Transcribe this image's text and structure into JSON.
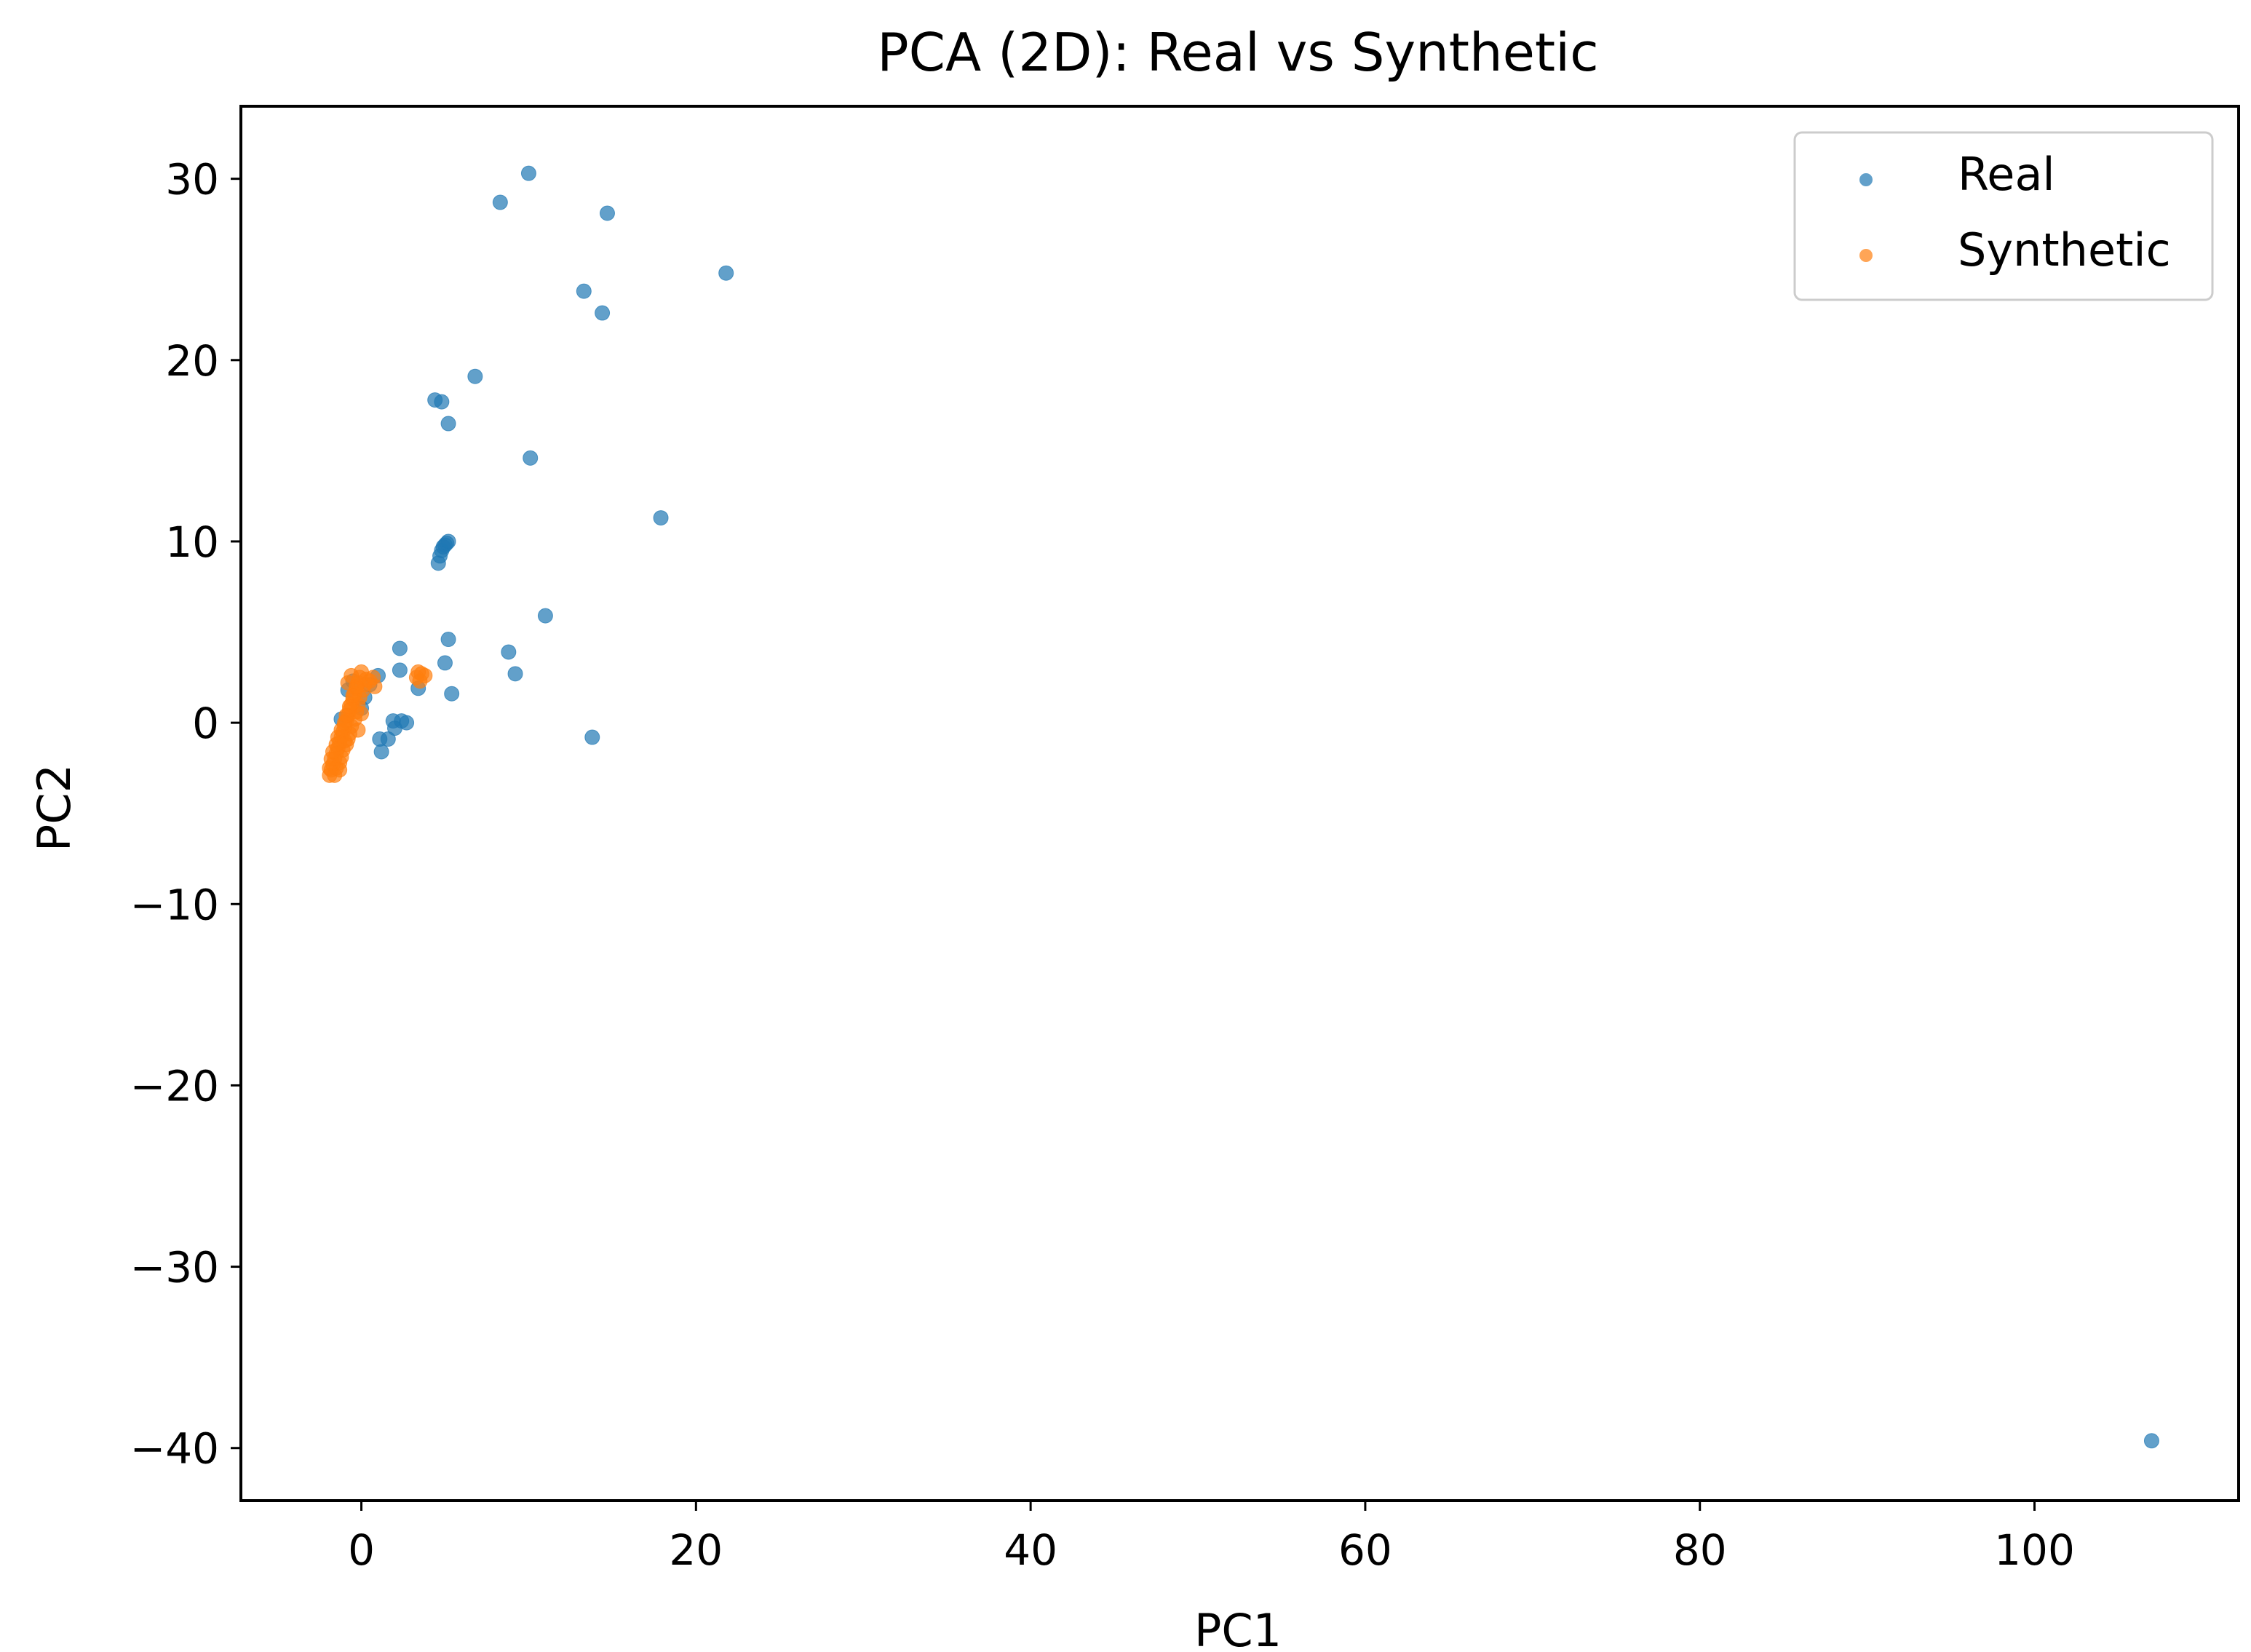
{
  "chart_data": {
    "type": "scatter",
    "title": "PCA (2D): Real vs Synthetic",
    "xlabel": "PC1",
    "ylabel": "PC2",
    "xlim": [
      -7.2,
      112.2
    ],
    "ylim": [
      -42.9,
      34.0
    ],
    "x_ticks": [
      0,
      20,
      40,
      60,
      80,
      100
    ],
    "y_ticks": [
      -40,
      -30,
      -20,
      -10,
      0,
      10,
      20,
      30
    ],
    "x_tick_labels": [
      "0",
      "20",
      "40",
      "60",
      "80",
      "100"
    ],
    "y_tick_labels": [
      "−40",
      "−30",
      "−20",
      "−10",
      "0",
      "10",
      "20",
      "30"
    ],
    "grid": false,
    "legend": {
      "position": "top-right",
      "entries": [
        "Real",
        "Synthetic"
      ]
    },
    "series": [
      {
        "name": "Real",
        "color": "#1f77b4",
        "alpha": 0.7,
        "points": [
          [
            10.0,
            30.3
          ],
          [
            8.3,
            28.7
          ],
          [
            14.7,
            28.1
          ],
          [
            21.8,
            24.8
          ],
          [
            13.3,
            23.8
          ],
          [
            14.4,
            22.6
          ],
          [
            6.8,
            19.1
          ],
          [
            4.4,
            17.8
          ],
          [
            4.8,
            17.7
          ],
          [
            5.2,
            16.5
          ],
          [
            10.1,
            14.6
          ],
          [
            17.9,
            11.3
          ],
          [
            4.6,
            8.8
          ],
          [
            4.7,
            9.2
          ],
          [
            4.8,
            9.5
          ],
          [
            4.9,
            9.7
          ],
          [
            5.0,
            9.8
          ],
          [
            5.1,
            9.9
          ],
          [
            5.2,
            10.0
          ],
          [
            11.0,
            5.9
          ],
          [
            5.2,
            4.6
          ],
          [
            2.3,
            4.1
          ],
          [
            8.8,
            3.9
          ],
          [
            5.0,
            3.3
          ],
          [
            2.3,
            2.9
          ],
          [
            9.2,
            2.7
          ],
          [
            3.4,
            1.9
          ],
          [
            5.4,
            1.6
          ],
          [
            1.0,
            2.6
          ],
          [
            0.5,
            2.1
          ],
          [
            0.2,
            1.4
          ],
          [
            0.0,
            0.8
          ],
          [
            2.4,
            0.1
          ],
          [
            1.9,
            0.1
          ],
          [
            2.7,
            0.0
          ],
          [
            2.0,
            -0.3
          ],
          [
            1.1,
            -0.9
          ],
          [
            1.6,
            -0.9
          ],
          [
            13.8,
            -0.8
          ],
          [
            1.2,
            -1.6
          ],
          [
            -0.8,
            1.8
          ],
          [
            -1.2,
            0.2
          ],
          [
            -0.5,
            2.3
          ],
          [
            107.0,
            -39.6
          ]
        ]
      },
      {
        "name": "Synthetic",
        "color": "#ff7f0e",
        "alpha": 0.7,
        "points": [
          [
            -1.9,
            -2.9
          ],
          [
            -1.8,
            -2.6
          ],
          [
            -1.7,
            -2.3
          ],
          [
            -1.6,
            -2.0
          ],
          [
            -1.5,
            -1.7
          ],
          [
            -1.4,
            -1.4
          ],
          [
            -1.3,
            -1.1
          ],
          [
            -1.2,
            -0.8
          ],
          [
            -1.1,
            -0.5
          ],
          [
            -1.0,
            -0.2
          ],
          [
            -0.9,
            0.1
          ],
          [
            -0.8,
            0.4
          ],
          [
            -0.7,
            0.7
          ],
          [
            -0.6,
            1.0
          ],
          [
            -0.5,
            1.3
          ],
          [
            -0.4,
            1.6
          ],
          [
            -0.3,
            1.9
          ],
          [
            -0.2,
            2.2
          ],
          [
            -0.1,
            2.5
          ],
          [
            0.0,
            2.8
          ],
          [
            -1.6,
            -2.9
          ],
          [
            -1.5,
            -2.5
          ],
          [
            -1.3,
            -2.2
          ],
          [
            -1.2,
            -1.9
          ],
          [
            -1.1,
            -1.5
          ],
          [
            -0.9,
            -1.2
          ],
          [
            -0.8,
            -0.9
          ],
          [
            -0.7,
            -0.6
          ],
          [
            -0.6,
            -0.2
          ],
          [
            -0.4,
            0.2
          ],
          [
            -0.3,
            0.6
          ],
          [
            -0.2,
            1.0
          ],
          [
            -0.1,
            1.4
          ],
          [
            0.1,
            1.8
          ],
          [
            0.2,
            2.1
          ],
          [
            0.3,
            2.4
          ],
          [
            -1.8,
            -2.0
          ],
          [
            -1.7,
            -1.6
          ],
          [
            -1.5,
            -1.2
          ],
          [
            -1.4,
            -0.8
          ],
          [
            -1.2,
            -0.4
          ],
          [
            -1.0,
            0.0
          ],
          [
            -0.9,
            0.4
          ],
          [
            -0.7,
            0.9
          ],
          [
            -0.5,
            1.5
          ],
          [
            -0.3,
            2.0
          ],
          [
            0.5,
            2.3
          ],
          [
            0.7,
            2.5
          ],
          [
            -0.8,
            2.2
          ],
          [
            -0.6,
            2.6
          ],
          [
            0.8,
            2.0
          ],
          [
            -1.9,
            -2.5
          ],
          [
            -1.3,
            -2.6
          ],
          [
            -1.0,
            -1.0
          ],
          [
            -0.2,
            -0.4
          ],
          [
            0.0,
            0.5
          ],
          [
            3.3,
            2.5
          ],
          [
            3.6,
            2.7
          ],
          [
            3.5,
            2.3
          ],
          [
            3.8,
            2.6
          ],
          [
            3.4,
            2.8
          ]
        ]
      }
    ]
  }
}
